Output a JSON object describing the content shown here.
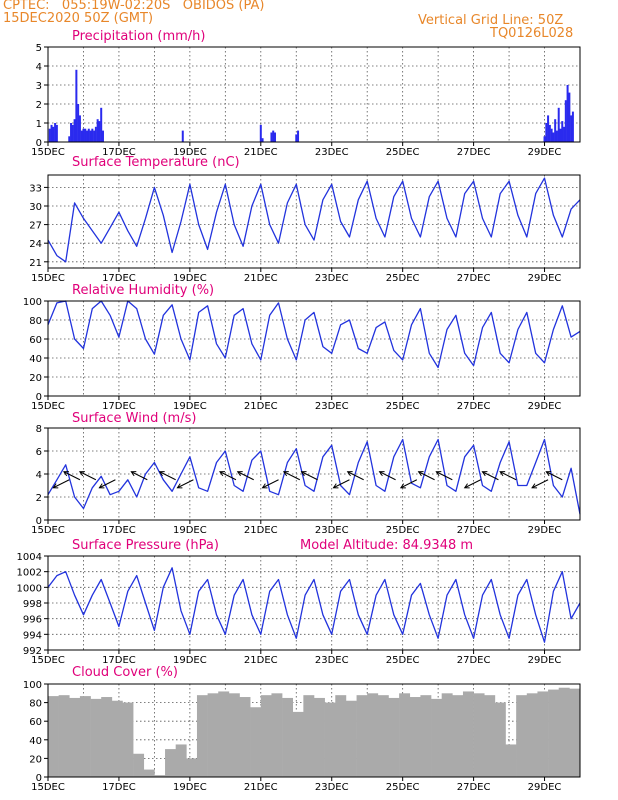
{
  "header": {
    "line1_left": "CPTEC:   055:19W-02:20S   OBIDOS (PA)",
    "line2_left": "15DEC2020 50Z (GMT)",
    "line1_right": "Vertical Grid Line: 50Z",
    "line2_right": "TQ0126L028"
  },
  "colors": {
    "header": "#e8872a",
    "panel_title": "#e0007a",
    "line": "#2233dd",
    "bar": "#2a2aee",
    "cloud": "#aaaaaa",
    "arrow": "#000000"
  },
  "x_axis": {
    "tick_labels": [
      "15DEC",
      "17DEC",
      "19DEC",
      "21DEC",
      "23DEC",
      "25DEC",
      "27DEC",
      "29DEC"
    ],
    "tick_days": [
      0,
      2,
      4,
      6,
      8,
      10,
      12,
      14
    ],
    "range_days": [
      0,
      15
    ]
  },
  "chart_data": [
    {
      "id": "precip",
      "type": "bar",
      "title": "Precipitation (mm/h)",
      "ylim": [
        0,
        5
      ],
      "yticks": [
        0,
        1,
        2,
        3,
        4,
        5
      ],
      "x_days": [
        0.05,
        0.1,
        0.15,
        0.2,
        0.25,
        0.6,
        0.65,
        0.7,
        0.75,
        0.8,
        0.85,
        0.9,
        0.95,
        1.0,
        1.05,
        1.1,
        1.15,
        1.2,
        1.25,
        1.3,
        1.35,
        1.4,
        1.45,
        1.5,
        1.55,
        3.8,
        6.0,
        6.05,
        6.3,
        6.35,
        6.4,
        7.0,
        7.05,
        14.0,
        14.05,
        14.1,
        14.15,
        14.2,
        14.25,
        14.3,
        14.35,
        14.4,
        14.45,
        14.5,
        14.55,
        14.6,
        14.65,
        14.7,
        14.75,
        14.8
      ],
      "values": [
        0.7,
        0.9,
        0.8,
        1.0,
        0.9,
        0.3,
        1.0,
        0.9,
        1.2,
        3.8,
        2.0,
        1.4,
        0.6,
        0.7,
        0.7,
        0.6,
        0.7,
        0.6,
        0.7,
        0.6,
        0.8,
        1.2,
        1.1,
        1.8,
        0.6,
        0.6,
        0.9,
        0.2,
        0.5,
        0.6,
        0.5,
        0.4,
        0.6,
        0.3,
        1.0,
        1.4,
        0.9,
        0.7,
        0.5,
        1.2,
        0.6,
        1.8,
        0.7,
        1.1,
        0.8,
        2.2,
        3.0,
        2.6,
        1.4,
        1.6
      ]
    },
    {
      "id": "temp",
      "type": "line",
      "title": "Surface Temperature (nC)",
      "ylim": [
        20,
        35
      ],
      "yticks": [
        21,
        24,
        27,
        30,
        33
      ],
      "x_days": [
        0,
        0.25,
        0.5,
        0.75,
        1,
        1.25,
        1.5,
        1.75,
        2,
        2.25,
        2.5,
        2.75,
        3,
        3.25,
        3.5,
        3.75,
        4,
        4.25,
        4.5,
        4.75,
        5,
        5.25,
        5.5,
        5.75,
        6,
        6.25,
        6.5,
        6.75,
        7,
        7.25,
        7.5,
        7.75,
        8,
        8.25,
        8.5,
        8.75,
        9,
        9.25,
        9.5,
        9.75,
        10,
        10.25,
        10.5,
        10.75,
        11,
        11.25,
        11.5,
        11.75,
        12,
        12.25,
        12.5,
        12.75,
        13,
        13.25,
        13.5,
        13.75,
        14,
        14.25,
        14.5,
        14.75,
        15
      ],
      "values": [
        24.5,
        22.0,
        21.0,
        30.5,
        28.0,
        26.0,
        24.0,
        26.5,
        29.0,
        26.0,
        23.5,
        28.0,
        33.0,
        28.5,
        22.5,
        27.5,
        33.5,
        27.0,
        23.0,
        29.0,
        33.5,
        27.0,
        23.5,
        30.0,
        33.5,
        27.0,
        24.0,
        30.5,
        33.5,
        27.0,
        24.5,
        31.0,
        33.5,
        27.5,
        25.0,
        31.0,
        34.0,
        28.0,
        25.0,
        31.5,
        34.0,
        28.0,
        25.0,
        31.5,
        34.0,
        28.0,
        25.0,
        32.0,
        34.0,
        28.0,
        25.0,
        32.0,
        34.0,
        28.5,
        25.0,
        32.0,
        34.5,
        28.5,
        25.0,
        29.5,
        31.0
      ]
    },
    {
      "id": "rh",
      "type": "line",
      "title": "Relative Humidity (%)",
      "ylim": [
        0,
        100
      ],
      "yticks": [
        0,
        20,
        40,
        60,
        80,
        100
      ],
      "x_days": [
        0,
        0.25,
        0.5,
        0.75,
        1,
        1.25,
        1.5,
        1.75,
        2,
        2.25,
        2.5,
        2.75,
        3,
        3.25,
        3.5,
        3.75,
        4,
        4.25,
        4.5,
        4.75,
        5,
        5.25,
        5.5,
        5.75,
        6,
        6.25,
        6.5,
        6.75,
        7,
        7.25,
        7.5,
        7.75,
        8,
        8.25,
        8.5,
        8.75,
        9,
        9.25,
        9.5,
        9.75,
        10,
        10.25,
        10.5,
        10.75,
        11,
        11.25,
        11.5,
        11.75,
        12,
        12.25,
        12.5,
        12.75,
        13,
        13.25,
        13.5,
        13.75,
        14,
        14.25,
        14.5,
        14.75,
        15
      ],
      "values": [
        75,
        98,
        100,
        60,
        50,
        92,
        100,
        85,
        62,
        100,
        92,
        60,
        44,
        85,
        96,
        60,
        38,
        88,
        95,
        55,
        40,
        85,
        92,
        55,
        38,
        85,
        98,
        60,
        38,
        80,
        88,
        52,
        45,
        75,
        80,
        50,
        45,
        72,
        78,
        48,
        38,
        75,
        92,
        45,
        30,
        70,
        85,
        45,
        32,
        72,
        88,
        45,
        35,
        70,
        88,
        45,
        35,
        70,
        95,
        62,
        68
      ]
    },
    {
      "id": "wind",
      "type": "line",
      "title": "Surface Wind (m/s)",
      "ylim": [
        0,
        8
      ],
      "yticks": [
        0,
        2,
        4,
        6,
        8
      ],
      "x_days": [
        0,
        0.25,
        0.5,
        0.75,
        1,
        1.25,
        1.5,
        1.75,
        2,
        2.25,
        2.5,
        2.75,
        3,
        3.25,
        3.5,
        3.75,
        4,
        4.25,
        4.5,
        4.75,
        5,
        5.25,
        5.5,
        5.75,
        6,
        6.25,
        6.5,
        6.75,
        7,
        7.25,
        7.5,
        7.75,
        8,
        8.25,
        8.5,
        8.75,
        9,
        9.25,
        9.5,
        9.75,
        10,
        10.25,
        10.5,
        10.75,
        11,
        11.25,
        11.5,
        11.75,
        12,
        12.25,
        12.5,
        12.75,
        13,
        13.25,
        13.5,
        13.75,
        14,
        14.25,
        14.5,
        14.75,
        15
      ],
      "values": [
        2.2,
        3.5,
        4.8,
        2.0,
        1.0,
        2.8,
        3.8,
        2.2,
        2.5,
        3.5,
        2.0,
        4.0,
        5.0,
        3.5,
        2.5,
        4.0,
        5.5,
        2.8,
        2.5,
        5.0,
        6.0,
        3.0,
        2.5,
        5.2,
        6.0,
        2.5,
        2.2,
        5.0,
        6.2,
        3.0,
        2.5,
        5.5,
        6.5,
        3.0,
        2.2,
        5.0,
        6.8,
        3.0,
        2.5,
        5.5,
        7.0,
        3.2,
        2.8,
        5.5,
        7.0,
        3.0,
        2.5,
        5.5,
        6.5,
        3.0,
        2.5,
        5.0,
        6.8,
        3.0,
        3.0,
        5.0,
        7.0,
        3.0,
        2.0,
        4.5,
        0.5
      ],
      "vector_arrows_days": [
        0.6,
        0.9,
        1.35,
        1.9,
        2.8,
        3.6,
        4.1,
        5.3,
        5.8,
        6.5,
        7.1,
        7.6,
        8.5,
        8.9,
        9.8,
        10.4,
        10.9,
        11.4,
        12.2,
        12.7,
        13.2,
        14.1,
        14.5
      ]
    },
    {
      "id": "pressure",
      "type": "line",
      "title": "Surface Pressure (hPa)",
      "annotation": "Model Altitude: 84.9348 m",
      "ylim": [
        992,
        1004
      ],
      "yticks": [
        992,
        994,
        996,
        998,
        1000,
        1002,
        1004
      ],
      "x_days": [
        0,
        0.25,
        0.5,
        0.75,
        1,
        1.25,
        1.5,
        1.75,
        2,
        2.25,
        2.5,
        2.75,
        3,
        3.25,
        3.5,
        3.75,
        4,
        4.25,
        4.5,
        4.75,
        5,
        5.25,
        5.5,
        5.75,
        6,
        6.25,
        6.5,
        6.75,
        7,
        7.25,
        7.5,
        7.75,
        8,
        8.25,
        8.5,
        8.75,
        9,
        9.25,
        9.5,
        9.75,
        10,
        10.25,
        10.5,
        10.75,
        11,
        11.25,
        11.5,
        11.75,
        12,
        12.25,
        12.5,
        12.75,
        13,
        13.25,
        13.5,
        13.75,
        14,
        14.25,
        14.5,
        14.75,
        15
      ],
      "values": [
        1000,
        1001.5,
        1002,
        999,
        996.5,
        999,
        1001,
        998,
        995,
        999.5,
        1001.5,
        998,
        994.5,
        1000,
        1002.5,
        997,
        994,
        999.5,
        1001,
        996.5,
        994,
        999,
        1001,
        996.5,
        994,
        999.5,
        1001,
        996.5,
        993.5,
        999,
        1001,
        996.5,
        994,
        999.5,
        1001,
        996.5,
        994,
        999,
        1001,
        996.5,
        994,
        999,
        1000.5,
        996.5,
        993.5,
        999,
        1001,
        996.5,
        993.5,
        999,
        1001,
        996.5,
        993.5,
        999,
        1001,
        996.5,
        993,
        999.5,
        1002,
        996,
        998
      ]
    },
    {
      "id": "cloud",
      "type": "area",
      "title": "Cloud Cover (%)",
      "ylim": [
        0,
        100
      ],
      "yticks": [
        0,
        20,
        40,
        60,
        80,
        100
      ],
      "x_days": [
        0,
        0.3,
        0.6,
        0.9,
        1.2,
        1.5,
        1.8,
        2.1,
        2.4,
        2.7,
        3.0,
        3.3,
        3.6,
        3.9,
        4.2,
        4.5,
        4.8,
        5.1,
        5.4,
        5.7,
        6.0,
        6.3,
        6.6,
        6.9,
        7.2,
        7.5,
        7.8,
        8.1,
        8.4,
        8.7,
        9.0,
        9.3,
        9.6,
        9.9,
        10.2,
        10.5,
        10.8,
        11.1,
        11.4,
        11.7,
        12.0,
        12.3,
        12.6,
        12.9,
        13.2,
        13.5,
        13.8,
        14.1,
        14.4,
        14.7,
        15
      ],
      "values": [
        87,
        88,
        85,
        87,
        84,
        86,
        82,
        80,
        25,
        8,
        2,
        30,
        35,
        20,
        88,
        90,
        92,
        90,
        86,
        75,
        88,
        90,
        85,
        70,
        88,
        85,
        80,
        88,
        82,
        88,
        90,
        88,
        85,
        90,
        86,
        88,
        84,
        90,
        88,
        92,
        90,
        88,
        80,
        35,
        88,
        90,
        92,
        94,
        96,
        95,
        96
      ]
    }
  ]
}
